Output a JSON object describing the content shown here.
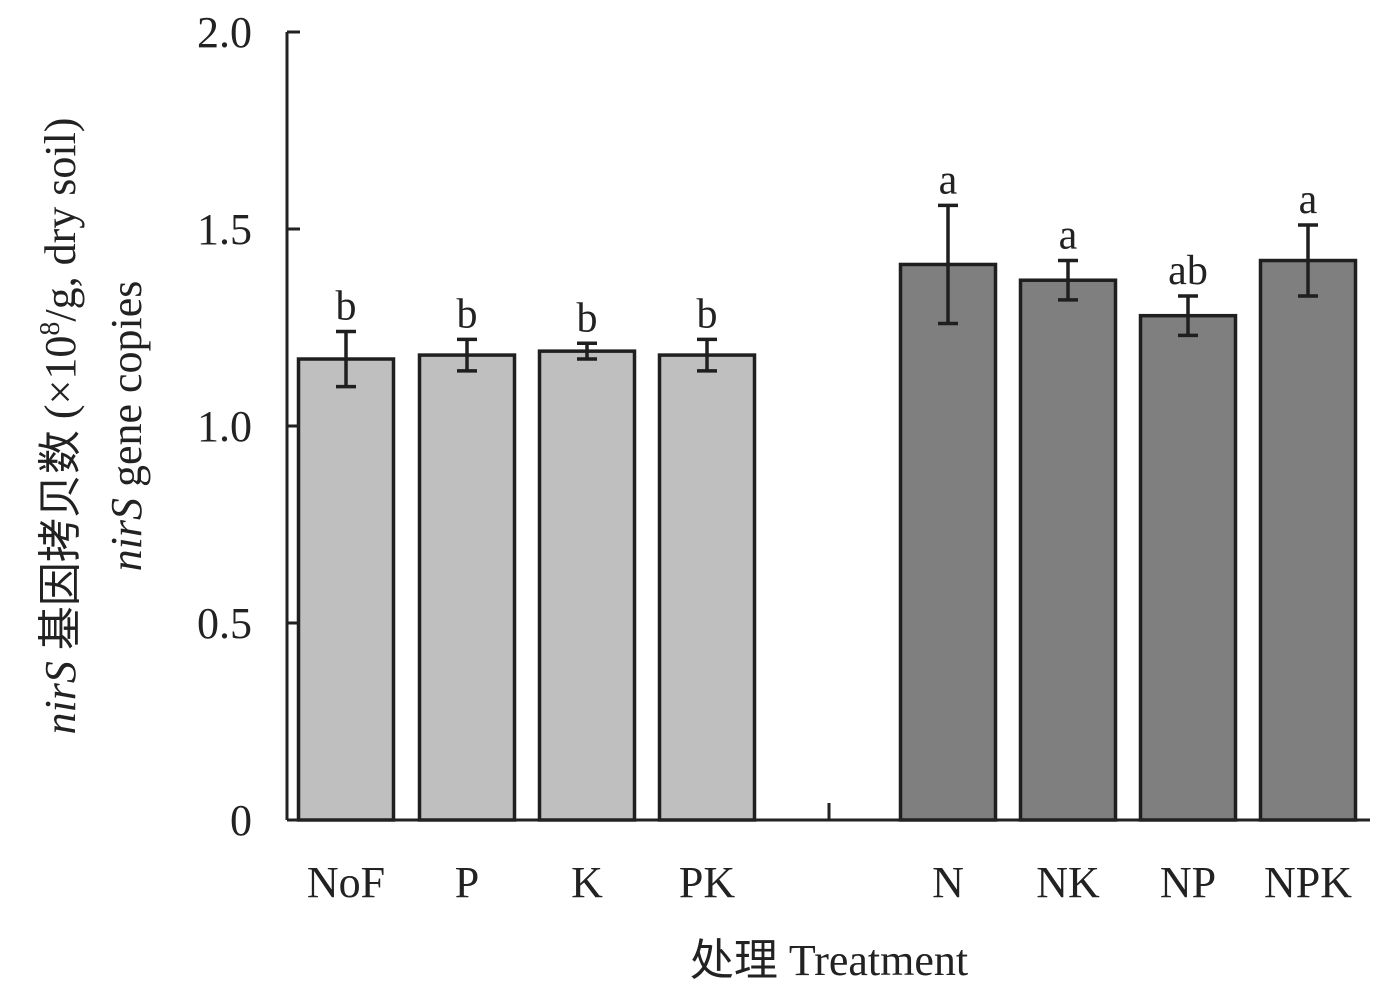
{
  "chart_data": {
    "type": "bar",
    "categories": [
      "NoF",
      "P",
      "K",
      "PK",
      "N",
      "NK",
      "NP",
      "NPK"
    ],
    "values": [
      1.17,
      1.18,
      1.19,
      1.18,
      1.41,
      1.37,
      1.28,
      1.42
    ],
    "errors": [
      0.07,
      0.04,
      0.02,
      0.04,
      0.15,
      0.05,
      0.05,
      0.09
    ],
    "significance": [
      "b",
      "b",
      "b",
      "b",
      "a",
      "a",
      "ab",
      "a"
    ],
    "groups": [
      {
        "categories": [
          "NoF",
          "P",
          "K",
          "PK"
        ],
        "color": "#bfbfbf"
      },
      {
        "categories": [
          "N",
          "NK",
          "NP",
          "NPK"
        ],
        "color": "#7f7f7f"
      }
    ],
    "ylim": [
      0,
      2.0
    ],
    "yticks": [
      "0",
      "0.5",
      "1.0",
      "1.5",
      "2.0"
    ],
    "xlabel": "处理 Treatment",
    "ylabel_line1_italic": "nirS",
    "ylabel_line1_rest": " 基因拷贝数 (×10",
    "ylabel_line1_sup": "8",
    "ylabel_line1_end": "/g, dry soil)",
    "ylabel_line2_italic": "nirS",
    "ylabel_line2_rest": " gene copies",
    "grid": false,
    "legend": "none"
  }
}
